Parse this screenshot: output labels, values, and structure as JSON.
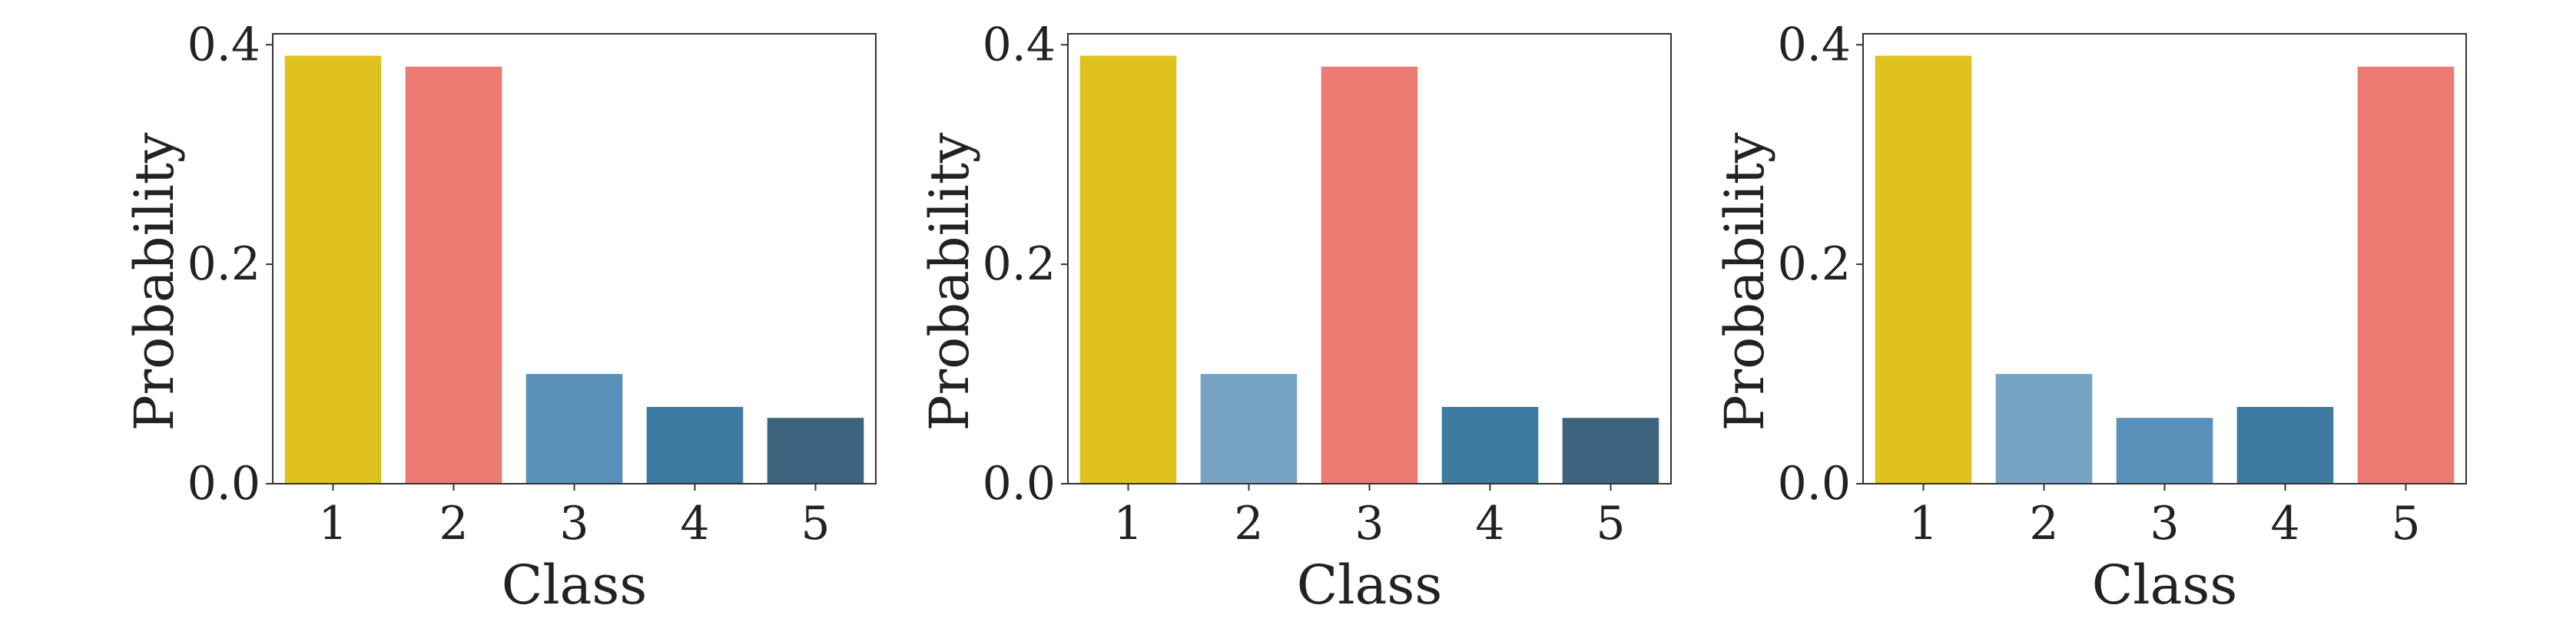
{
  "chart_data": [
    {
      "type": "bar",
      "categories": [
        "1",
        "2",
        "3",
        "4",
        "5"
      ],
      "values": [
        0.39,
        0.38,
        0.1,
        0.07,
        0.06
      ],
      "colors": [
        "#dfc21f",
        "#ec7b74",
        "#5890ba",
        "#3f7aa1",
        "#3e637e"
      ],
      "xlabel": "Class",
      "ylabel": "Probability",
      "ylim": [
        0,
        0.41
      ],
      "yticks": [
        "0.0",
        "0.2",
        "0.4"
      ],
      "ytick_values": [
        0,
        0.2,
        0.4
      ],
      "grid": false
    },
    {
      "type": "bar",
      "categories": [
        "1",
        "2",
        "3",
        "4",
        "5"
      ],
      "values": [
        0.39,
        0.1,
        0.38,
        0.07,
        0.06
      ],
      "colors": [
        "#dfc21f",
        "#77a4c5",
        "#ec7b74",
        "#3f7aa1",
        "#3e637e"
      ],
      "xlabel": "Class",
      "ylabel": "Probability",
      "ylim": [
        0,
        0.41
      ],
      "yticks": [
        "0.0",
        "0.2",
        "0.4"
      ],
      "ytick_values": [
        0,
        0.2,
        0.4
      ],
      "grid": false
    },
    {
      "type": "bar",
      "categories": [
        "1",
        "2",
        "3",
        "4",
        "5"
      ],
      "values": [
        0.39,
        0.1,
        0.06,
        0.07,
        0.38
      ],
      "colors": [
        "#dfc21f",
        "#77a4c5",
        "#5890ba",
        "#3f7aa1",
        "#ec7b74"
      ],
      "xlabel": "Class",
      "ylabel": "Probability",
      "ylim": [
        0,
        0.41
      ],
      "yticks": [
        "0.0",
        "0.2",
        "0.4"
      ],
      "ytick_values": [
        0,
        0.2,
        0.4
      ],
      "grid": false
    }
  ]
}
